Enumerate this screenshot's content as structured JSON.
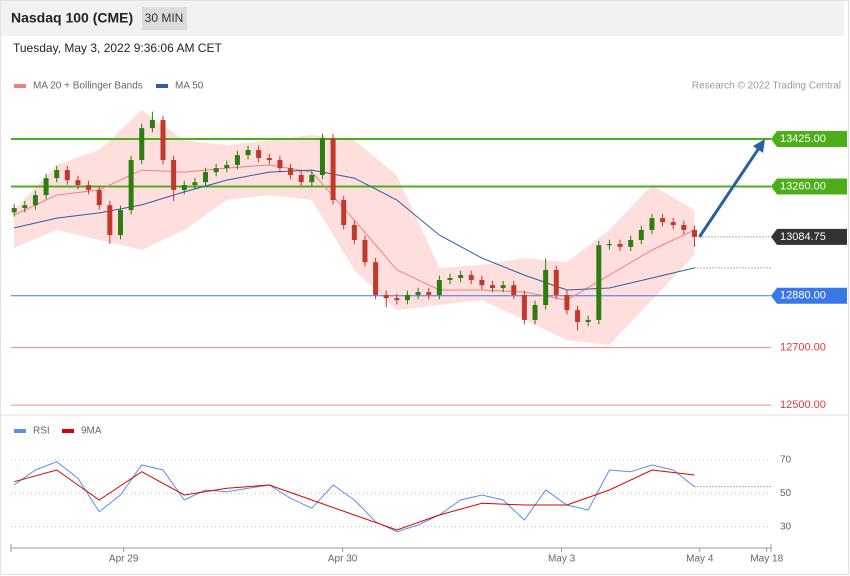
{
  "header": {
    "title": "Nasdaq 100 (CME)",
    "interval": "30 MIN",
    "timestamp": "Tuesday, May 3, 2022 9:36:06 AM CET"
  },
  "chart_data": [
    {
      "type": "candlestick",
      "credit": "Research © 2022 Trading Central",
      "xlim": [
        -0.3,
        71.2
      ],
      "ylim": [
        12476,
        13578
      ],
      "up_color": "#2e7d12",
      "down_color": "#c0392b",
      "open": [
        13170,
        13185,
        13195,
        13230,
        13289,
        13317,
        13282,
        13265,
        13248,
        13195,
        13091,
        13178,
        13352,
        13463,
        13491,
        13352,
        13248,
        13265,
        13275,
        13310,
        13324,
        13335,
        13369,
        13387,
        13359,
        13352,
        13324,
        13300,
        13275,
        13300,
        13428,
        13213,
        13126,
        13074,
        12997,
        12883,
        12872,
        12865,
        12883,
        12893,
        12883,
        12935,
        12942,
        12952,
        12935,
        12917,
        12907,
        12917,
        12883,
        12796,
        12848,
        12970,
        12883,
        12830,
        12789,
        12796,
        13056,
        13060,
        13050,
        13074,
        13109,
        13150,
        13136,
        13126,
        13109
      ],
      "high": [
        13200,
        13210,
        13245,
        13304,
        13332,
        13332,
        13297,
        13280,
        13263,
        13210,
        13193,
        13367,
        13478,
        13520,
        13506,
        13367,
        13280,
        13290,
        13325,
        13339,
        13350,
        13384,
        13402,
        13402,
        13374,
        13367,
        13339,
        13315,
        13315,
        13443,
        13443,
        13228,
        13141,
        13089,
        13012,
        12898,
        12887,
        12898,
        12908,
        12908,
        12950,
        12957,
        12967,
        12967,
        12950,
        12932,
        12932,
        12932,
        12898,
        12863,
        13010,
        12985,
        12898,
        12845,
        12811,
        13071,
        13075,
        13075,
        13089,
        13124,
        13165,
        13165,
        13151,
        13141,
        13124
      ],
      "low": [
        13155,
        13170,
        13180,
        13215,
        13274,
        13267,
        13250,
        13233,
        13180,
        13060,
        13076,
        13163,
        13337,
        13448,
        13337,
        13210,
        13233,
        13250,
        13260,
        13295,
        13309,
        13320,
        13354,
        13344,
        13337,
        13309,
        13285,
        13260,
        13260,
        13285,
        13198,
        13111,
        13059,
        12982,
        12868,
        12840,
        12850,
        12850,
        12868,
        12868,
        12868,
        12920,
        12927,
        12920,
        12902,
        12892,
        12892,
        12868,
        12781,
        12781,
        12833,
        12868,
        12815,
        12760,
        12774,
        12781,
        13041,
        13035,
        13035,
        13059,
        13094,
        13121,
        13111,
        13094,
        13050
      ],
      "close": [
        13185,
        13195,
        13230,
        13289,
        13317,
        13282,
        13265,
        13248,
        13195,
        13091,
        13178,
        13352,
        13463,
        13491,
        13352,
        13248,
        13265,
        13275,
        13310,
        13324,
        13335,
        13369,
        13387,
        13359,
        13352,
        13324,
        13300,
        13275,
        13300,
        13428,
        13213,
        13126,
        13074,
        12997,
        12883,
        12872,
        12865,
        12883,
        12893,
        12883,
        12935,
        12942,
        12952,
        12935,
        12917,
        12907,
        12917,
        12883,
        12796,
        12848,
        12970,
        12883,
        12830,
        12789,
        12796,
        13056,
        13060,
        13050,
        13074,
        13109,
        13150,
        13136,
        13126,
        13109,
        13084.75
      ],
      "series": [
        {
          "name": "MA 20 + Bollinger Bands",
          "color": "#f08080",
          "band_color": "#ffdede",
          "x": [
            0,
            4,
            8,
            12,
            16,
            20,
            24,
            28,
            32,
            36,
            40,
            44,
            48,
            52,
            56,
            60,
            64
          ],
          "values": [
            13161,
            13230,
            13248,
            13317,
            13310,
            13324,
            13335,
            13310,
            13143,
            12970,
            12900,
            12900,
            12893,
            12865,
            12952,
            13039,
            13109
          ],
          "band_upper": [
            13178,
            13335,
            13387,
            13526,
            13421,
            13404,
            13421,
            13439,
            13421,
            13300,
            12977,
            12987,
            13011,
            12997,
            13109,
            13265,
            13178
          ],
          "band_lower": [
            13046,
            13109,
            13074,
            13039,
            13109,
            13213,
            13230,
            13213,
            12970,
            12830,
            12848,
            12865,
            12796,
            12726,
            12709,
            12865,
            13022
          ]
        },
        {
          "name": "MA 50",
          "color": "#2c5f9e",
          "x": [
            0,
            4,
            8,
            12,
            16,
            20,
            24,
            28,
            32,
            36,
            40,
            44,
            48,
            52,
            56,
            60,
            64
          ],
          "values": [
            13116,
            13150,
            13168,
            13196,
            13241,
            13282,
            13310,
            13317,
            13289,
            13213,
            13091,
            13011,
            12952,
            12900,
            12907,
            12942,
            12977
          ]
        }
      ],
      "levels": [
        {
          "value": 13425,
          "label": "13425.00",
          "color": "#4caf1a",
          "boxed": true,
          "dotted": false
        },
        {
          "value": 13260,
          "label": "13260.00",
          "color": "#4caf1a",
          "boxed": true,
          "dotted": false
        },
        {
          "value": 13084.75,
          "label": "13084.75",
          "color": "#333333",
          "boxed": true,
          "dotted": true
        },
        {
          "value": 12880,
          "label": "12880.00",
          "color": "#3b78e7",
          "boxed": true,
          "dotted": false
        },
        {
          "value": 12700,
          "label": "12700.00",
          "color": "#e53935",
          "boxed": false,
          "dotted": false
        },
        {
          "value": 12500,
          "label": "12500.00",
          "color": "#e53935",
          "boxed": false,
          "dotted": false
        }
      ]
    },
    {
      "type": "line",
      "xlim": [
        -0.3,
        71.2
      ],
      "ylim": [
        19,
        82
      ],
      "yticks": [
        30,
        50,
        70
      ],
      "xticks": [
        {
          "value": 10.3,
          "label": "Apr 29"
        },
        {
          "value": 30.9,
          "label": "Apr 30"
        },
        {
          "value": 51.5,
          "label": "May 3"
        },
        {
          "value": 64.5,
          "label": "May 4"
        },
        {
          "value": 70.8,
          "label": "May 18"
        }
      ],
      "series": [
        {
          "name": "RSI",
          "color": "#5b8def",
          "x": [
            0,
            2,
            4,
            6,
            8,
            10,
            12,
            14,
            16,
            18,
            20,
            22,
            24,
            26,
            28,
            30,
            32,
            34,
            36,
            38,
            40,
            42,
            44,
            46,
            48,
            50,
            52,
            54,
            56,
            58,
            60,
            62,
            64
          ],
          "values": [
            55,
            64,
            69,
            59,
            39,
            49,
            67,
            64,
            46,
            52,
            51,
            53,
            55,
            47,
            41,
            55,
            46,
            33,
            27,
            31,
            37,
            46,
            49,
            46,
            34,
            52,
            43,
            40,
            64,
            63,
            67,
            64,
            54
          ]
        },
        {
          "name": "9MA",
          "color": "#e00000",
          "x": [
            0,
            4,
            8,
            12,
            16,
            20,
            24,
            28,
            32,
            36,
            40,
            44,
            48,
            52,
            56,
            60,
            64
          ],
          "values": [
            57,
            64,
            46,
            63,
            49,
            53,
            55,
            46,
            37,
            28,
            37,
            44,
            43,
            43,
            52,
            64,
            61
          ]
        }
      ]
    }
  ]
}
